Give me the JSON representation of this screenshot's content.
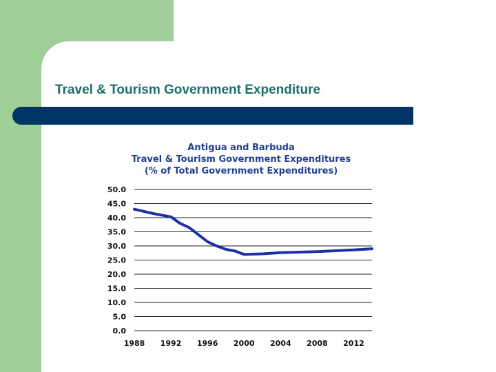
{
  "slide": {
    "title": "Travel & Tourism Government Expenditure",
    "colors": {
      "green": "#9dcf97",
      "bar": "#003366",
      "title": "#1c6e6b",
      "line": "#1f2fa8"
    }
  },
  "chart_data": {
    "type": "line",
    "title": [
      "Antigua and Barbuda",
      "Travel & Tourism Government Expenditures",
      "(% of Total Government Expenditures)"
    ],
    "xlabel": "",
    "ylabel": "",
    "x": [
      1988,
      1990,
      1992,
      1993,
      1994,
      1995,
      1996,
      1997,
      1998,
      1999,
      2000,
      2002,
      2004,
      2006,
      2008,
      2010,
      2012,
      2014
    ],
    "series": [
      {
        "values": [
          43,
          41.5,
          40.3,
          38,
          36.5,
          34,
          31.5,
          30,
          28.8,
          28.2,
          27,
          27.2,
          27.6,
          27.8,
          28.0,
          28.3,
          28.6,
          29.0
        ]
      }
    ],
    "ylim": [
      0,
      50
    ],
    "xlim": [
      1988,
      2014
    ],
    "y_ticks": [
      "0.0",
      "5.0",
      "10.0",
      "15.0",
      "20.0",
      "25.0",
      "30.0",
      "35.0",
      "40.0",
      "45.0",
      "50.0"
    ],
    "x_ticks": [
      "1988",
      "1992",
      "1996",
      "2000",
      "2004",
      "2008",
      "2012"
    ],
    "grid": true
  }
}
